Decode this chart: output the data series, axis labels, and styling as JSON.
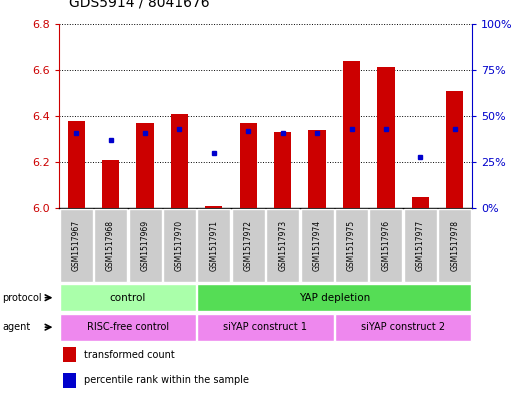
{
  "title": "GDS5914 / 8041676",
  "samples": [
    "GSM1517967",
    "GSM1517968",
    "GSM1517969",
    "GSM1517970",
    "GSM1517971",
    "GSM1517972",
    "GSM1517973",
    "GSM1517974",
    "GSM1517975",
    "GSM1517976",
    "GSM1517977",
    "GSM1517978"
  ],
  "transformed_count": [
    6.38,
    6.21,
    6.37,
    6.41,
    6.01,
    6.37,
    6.33,
    6.34,
    6.64,
    6.61,
    6.05,
    6.51
  ],
  "percentile_rank": [
    41,
    37,
    41,
    43,
    30,
    42,
    41,
    41,
    43,
    43,
    28,
    43
  ],
  "ylim_left": [
    6.0,
    6.8
  ],
  "ylim_right": [
    0,
    100
  ],
  "yticks_left": [
    6.0,
    6.2,
    6.4,
    6.6,
    6.8
  ],
  "yticks_right": [
    0,
    25,
    50,
    75,
    100
  ],
  "ytick_labels_right": [
    "0%",
    "25%",
    "50%",
    "75%",
    "100%"
  ],
  "bar_color": "#cc0000",
  "dot_color": "#0000cc",
  "bar_bottom": 6.0,
  "protocol_groups": [
    {
      "label": "control",
      "start": 0,
      "end": 4,
      "color": "#aaffaa"
    },
    {
      "label": "YAP depletion",
      "start": 4,
      "end": 12,
      "color": "#55dd55"
    }
  ],
  "agent_groups": [
    {
      "label": "RISC-free control",
      "start": 0,
      "end": 4,
      "color": "#ee88ee"
    },
    {
      "label": "siYAP construct 1",
      "start": 4,
      "end": 8,
      "color": "#ee88ee"
    },
    {
      "label": "siYAP construct 2",
      "start": 8,
      "end": 12,
      "color": "#ee88ee"
    }
  ],
  "tick_color_left": "#cc0000",
  "tick_color_right": "#0000cc",
  "plot_bg_color": "#ffffff",
  "gray_bg": "#cccccc"
}
